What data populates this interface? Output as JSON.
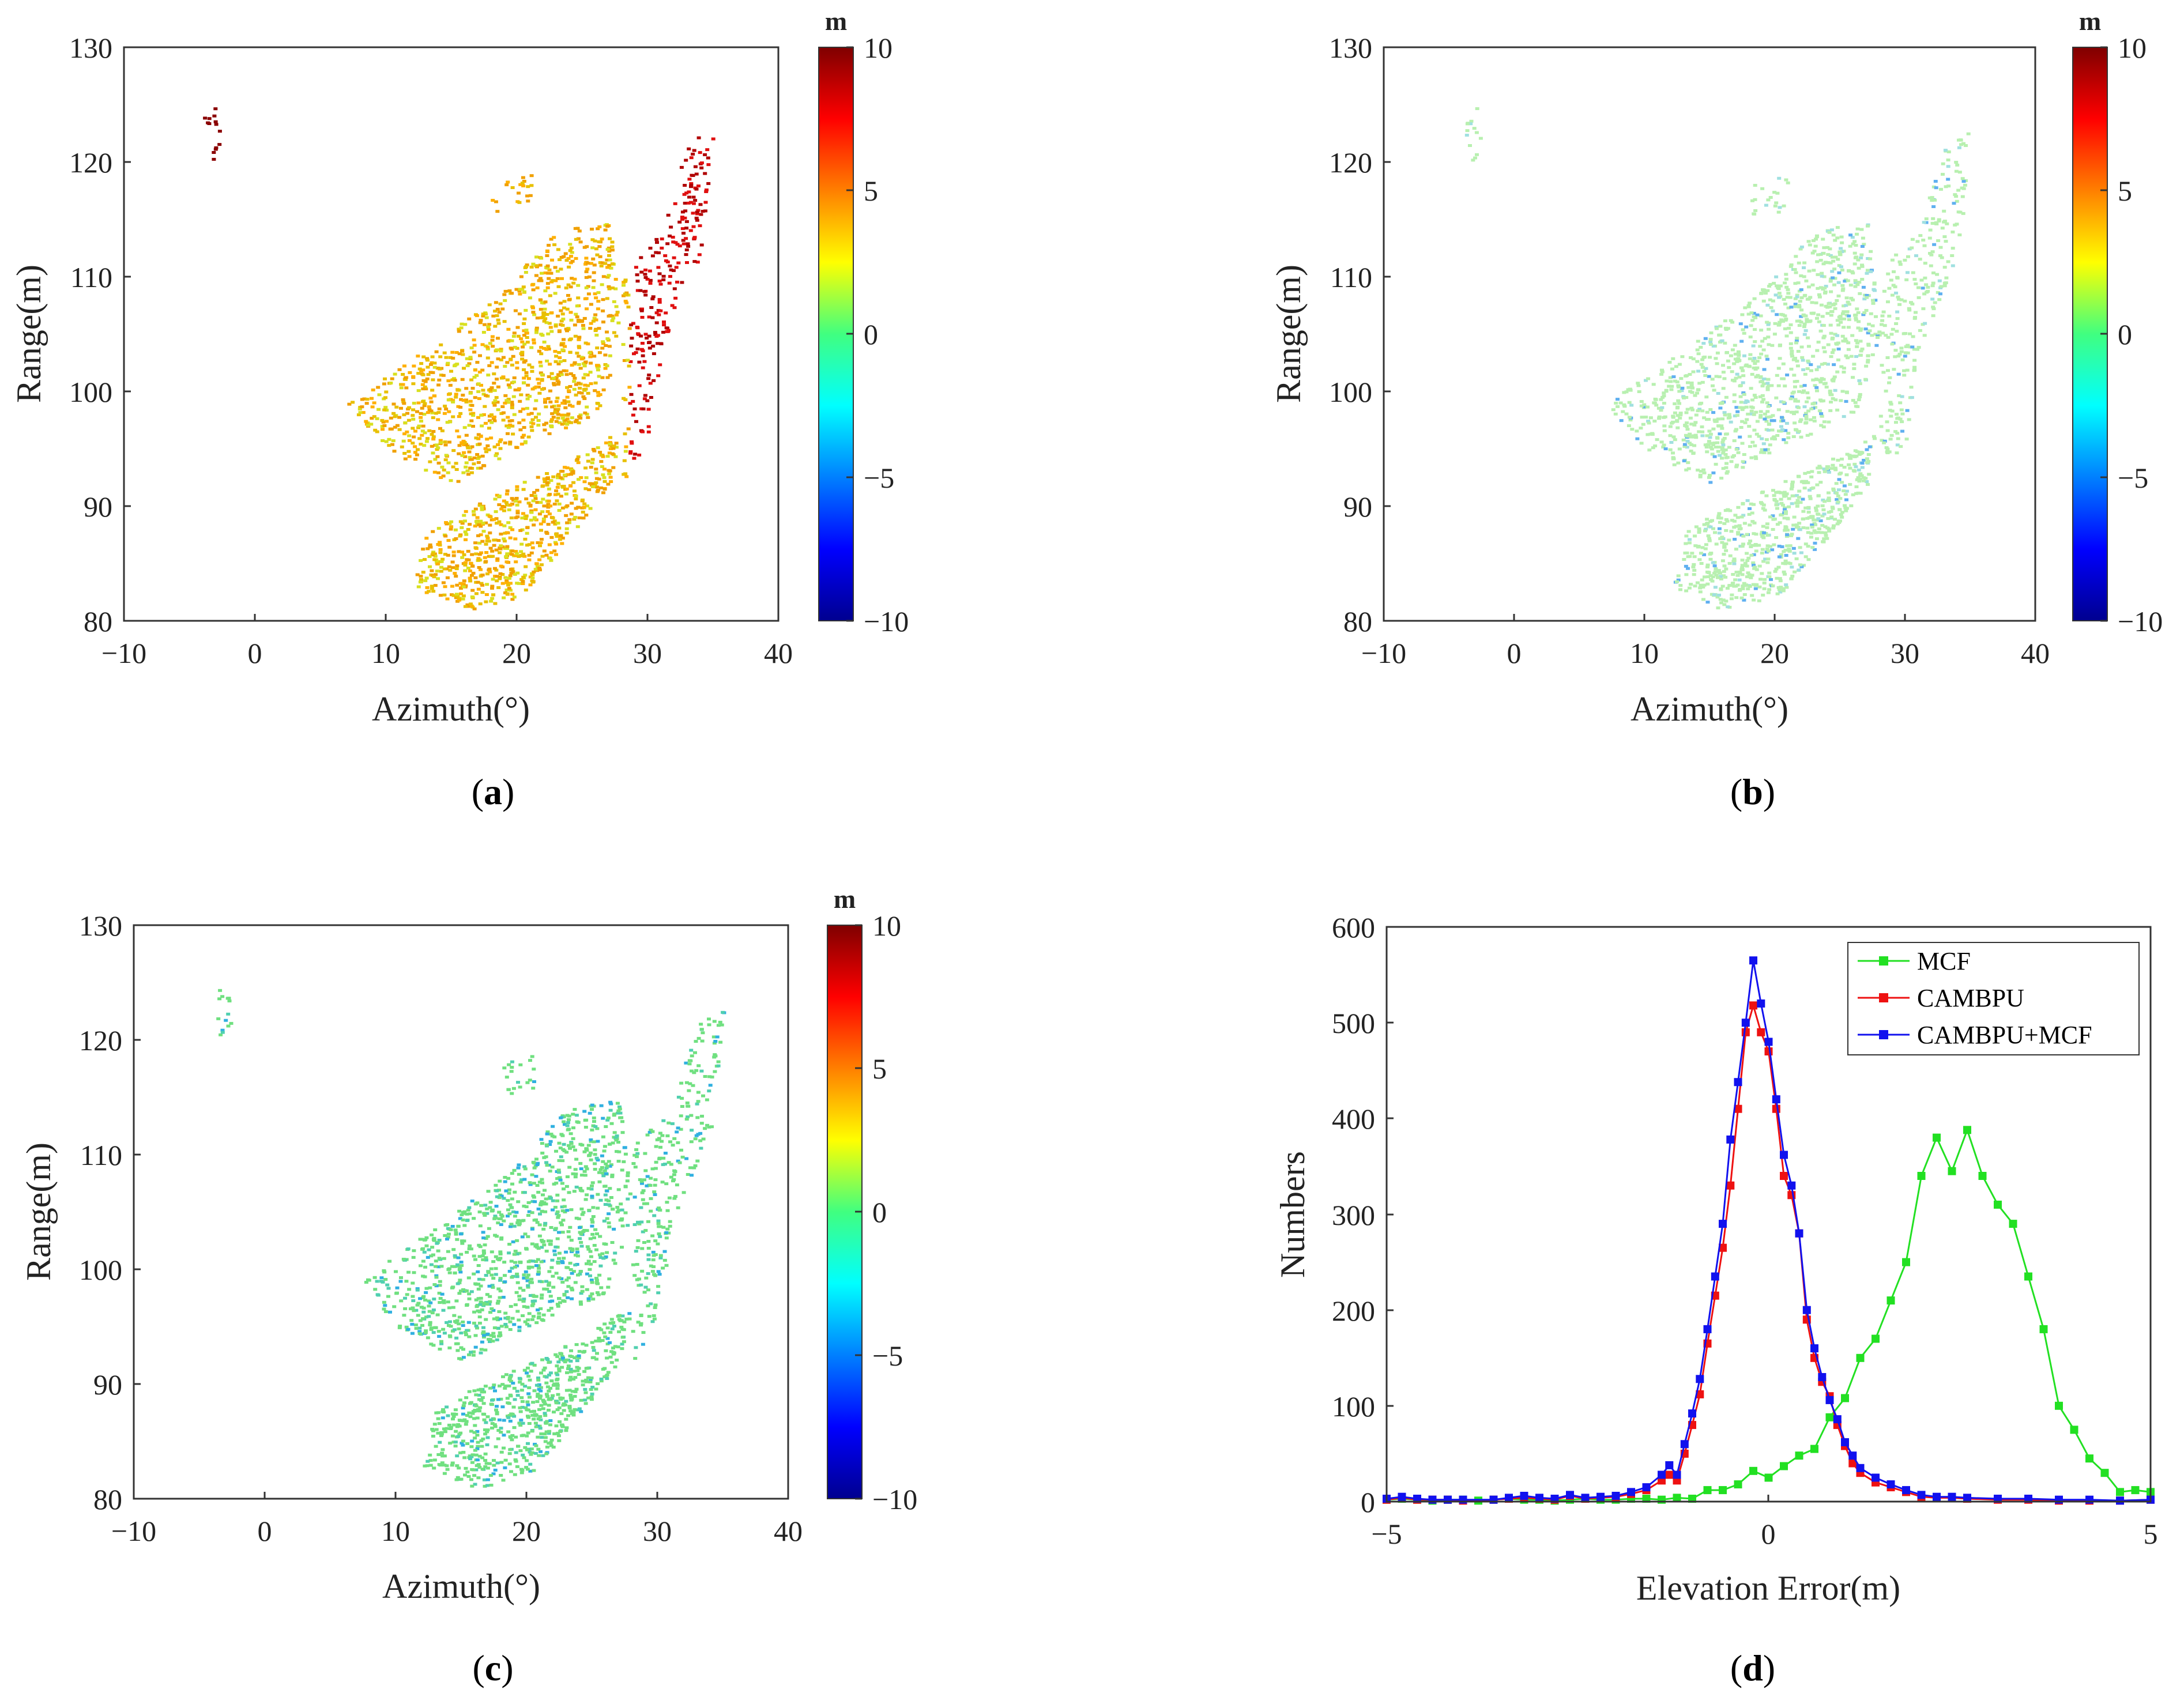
{
  "panels": [
    {
      "id": "a",
      "label_open": "(",
      "label_letter": "a",
      "label_close": ")",
      "xlabel": "Azimuth(°)",
      "ylabel": "Range(m)",
      "xticks": [
        "−10",
        "0",
        "10",
        "20",
        "30",
        "40"
      ],
      "yticks": [
        "80",
        "90",
        "100",
        "110",
        "120",
        "130"
      ],
      "colorbar": {
        "unit": "m",
        "ticks": [
          "10",
          "5",
          "0",
          "−5",
          "−10"
        ]
      },
      "scheme": "warm"
    },
    {
      "id": "b",
      "label_open": "(",
      "label_letter": "b",
      "label_close": ")",
      "xlabel": "Azimuth(°)",
      "ylabel": "Range(m)",
      "xticks": [
        "−10",
        "0",
        "10",
        "20",
        "30",
        "40"
      ],
      "yticks": [
        "80",
        "90",
        "100",
        "110",
        "120",
        "130"
      ],
      "colorbar": {
        "unit": "m",
        "ticks": [
          "10",
          "5",
          "0",
          "−5",
          "−10"
        ]
      },
      "scheme": "pale"
    },
    {
      "id": "c",
      "label_open": "(",
      "label_letter": "c",
      "label_close": ")",
      "xlabel": "Azimuth(°)",
      "ylabel": "Range(m)",
      "xticks": [
        "−10",
        "0",
        "10",
        "20",
        "30",
        "40"
      ],
      "yticks": [
        "80",
        "90",
        "100",
        "110",
        "120",
        "130"
      ],
      "colorbar": {
        "unit": "m",
        "ticks": [
          "10",
          "5",
          "0",
          "−5",
          "−10"
        ]
      },
      "scheme": "green"
    }
  ],
  "chart_data": {
    "type": "line",
    "panel_label_open": "(",
    "panel_label_letter": "d",
    "panel_label_close": ")",
    "xlabel": "Elevation Error(m)",
    "ylabel": "Numbers",
    "xlim": [
      -5,
      5
    ],
    "ylim": [
      0,
      600
    ],
    "xticks": [
      "−5",
      "0",
      "5"
    ],
    "yticks": [
      "0",
      "100",
      "200",
      "300",
      "400",
      "500",
      "600"
    ],
    "legend_position": "top-right",
    "series": [
      {
        "name": "MCF",
        "color": "#22e022",
        "points": [
          [
            -5,
            2
          ],
          [
            -4.8,
            3
          ],
          [
            -4.6,
            2
          ],
          [
            -4.4,
            1
          ],
          [
            -4.2,
            2
          ],
          [
            -4,
            2
          ],
          [
            -3.8,
            1
          ],
          [
            -3.6,
            2
          ],
          [
            -3.4,
            3
          ],
          [
            -3.2,
            2
          ],
          [
            -3,
            2
          ],
          [
            -2.8,
            1
          ],
          [
            -2.6,
            2
          ],
          [
            -2.4,
            3
          ],
          [
            -2.2,
            2
          ],
          [
            -2,
            2
          ],
          [
            -1.8,
            3
          ],
          [
            -1.6,
            3
          ],
          [
            -1.4,
            2
          ],
          [
            -1.2,
            4
          ],
          [
            -1,
            3
          ],
          [
            -0.8,
            12
          ],
          [
            -0.6,
            12
          ],
          [
            -0.4,
            18
          ],
          [
            -0.2,
            32
          ],
          [
            0,
            25
          ],
          [
            0.2,
            37
          ],
          [
            0.4,
            48
          ],
          [
            0.6,
            55
          ],
          [
            0.8,
            88
          ],
          [
            1,
            108
          ],
          [
            1.2,
            150
          ],
          [
            1.4,
            170
          ],
          [
            1.6,
            210
          ],
          [
            1.8,
            250
          ],
          [
            2,
            340
          ],
          [
            2.2,
            380
          ],
          [
            2.4,
            345
          ],
          [
            2.6,
            388
          ],
          [
            2.8,
            340
          ],
          [
            3,
            310
          ],
          [
            3.2,
            290
          ],
          [
            3.4,
            235
          ],
          [
            3.6,
            180
          ],
          [
            3.8,
            100
          ],
          [
            4,
            75
          ],
          [
            4.2,
            45
          ],
          [
            4.4,
            30
          ],
          [
            4.6,
            10
          ],
          [
            4.8,
            12
          ],
          [
            5,
            10
          ]
        ]
      },
      {
        "name": "CAMBPU",
        "color": "#ee1111",
        "points": [
          [
            -5,
            2
          ],
          [
            -4.8,
            4
          ],
          [
            -4.6,
            2
          ],
          [
            -4.4,
            2
          ],
          [
            -4.2,
            2
          ],
          [
            -4,
            1
          ],
          [
            -3.6,
            2
          ],
          [
            -3.4,
            3
          ],
          [
            -3.2,
            4
          ],
          [
            -3,
            3
          ],
          [
            -2.8,
            2
          ],
          [
            -2.6,
            6
          ],
          [
            -2.4,
            3
          ],
          [
            -2.2,
            4
          ],
          [
            -2,
            5
          ],
          [
            -1.8,
            8
          ],
          [
            -1.6,
            12
          ],
          [
            -1.4,
            22
          ],
          [
            -1.3,
            28
          ],
          [
            -1.2,
            22
          ],
          [
            -1.1,
            50
          ],
          [
            -1,
            80
          ],
          [
            -0.9,
            112
          ],
          [
            -0.8,
            165
          ],
          [
            -0.7,
            215
          ],
          [
            -0.6,
            265
          ],
          [
            -0.5,
            330
          ],
          [
            -0.4,
            410
          ],
          [
            -0.3,
            490
          ],
          [
            -0.2,
            518
          ],
          [
            -0.1,
            490
          ],
          [
            0,
            470
          ],
          [
            0.1,
            410
          ],
          [
            0.2,
            340
          ],
          [
            0.3,
            320
          ],
          [
            0.4,
            280
          ],
          [
            0.5,
            190
          ],
          [
            0.6,
            150
          ],
          [
            0.7,
            125
          ],
          [
            0.8,
            110
          ],
          [
            0.9,
            80
          ],
          [
            1,
            58
          ],
          [
            1.1,
            40
          ],
          [
            1.2,
            30
          ],
          [
            1.4,
            20
          ],
          [
            1.6,
            15
          ],
          [
            1.8,
            10
          ],
          [
            2,
            5
          ],
          [
            2.2,
            4
          ],
          [
            2.4,
            4
          ],
          [
            2.6,
            3
          ],
          [
            3,
            2
          ],
          [
            3.4,
            2
          ],
          [
            3.8,
            1
          ],
          [
            4.2,
            1
          ],
          [
            4.6,
            1
          ],
          [
            5,
            2
          ]
        ]
      },
      {
        "name": "CAMBPU+MCF",
        "color": "#1111ee",
        "points": [
          [
            -5,
            3
          ],
          [
            -4.8,
            5
          ],
          [
            -4.6,
            3
          ],
          [
            -4.4,
            2
          ],
          [
            -4.2,
            2
          ],
          [
            -4,
            2
          ],
          [
            -3.6,
            2
          ],
          [
            -3.4,
            4
          ],
          [
            -3.2,
            6
          ],
          [
            -3,
            4
          ],
          [
            -2.8,
            3
          ],
          [
            -2.6,
            7
          ],
          [
            -2.4,
            4
          ],
          [
            -2.2,
            5
          ],
          [
            -2,
            6
          ],
          [
            -1.8,
            10
          ],
          [
            -1.6,
            15
          ],
          [
            -1.4,
            28
          ],
          [
            -1.3,
            38
          ],
          [
            -1.2,
            28
          ],
          [
            -1.1,
            60
          ],
          [
            -1,
            92
          ],
          [
            -0.9,
            128
          ],
          [
            -0.8,
            180
          ],
          [
            -0.7,
            235
          ],
          [
            -0.6,
            290
          ],
          [
            -0.5,
            378
          ],
          [
            -0.4,
            438
          ],
          [
            -0.3,
            500
          ],
          [
            -0.2,
            565
          ],
          [
            -0.1,
            520
          ],
          [
            0,
            480
          ],
          [
            0.1,
            420
          ],
          [
            0.2,
            362
          ],
          [
            0.3,
            330
          ],
          [
            0.4,
            280
          ],
          [
            0.5,
            200
          ],
          [
            0.6,
            160
          ],
          [
            0.7,
            130
          ],
          [
            0.8,
            106
          ],
          [
            0.9,
            86
          ],
          [
            1,
            62
          ],
          [
            1.1,
            48
          ],
          [
            1.2,
            35
          ],
          [
            1.4,
            25
          ],
          [
            1.6,
            18
          ],
          [
            1.8,
            12
          ],
          [
            2,
            7
          ],
          [
            2.2,
            5
          ],
          [
            2.4,
            5
          ],
          [
            2.6,
            4
          ],
          [
            3,
            3
          ],
          [
            3.4,
            3
          ],
          [
            3.8,
            2
          ],
          [
            4.2,
            2
          ],
          [
            4.6,
            1
          ],
          [
            5,
            2
          ]
        ]
      }
    ]
  }
}
